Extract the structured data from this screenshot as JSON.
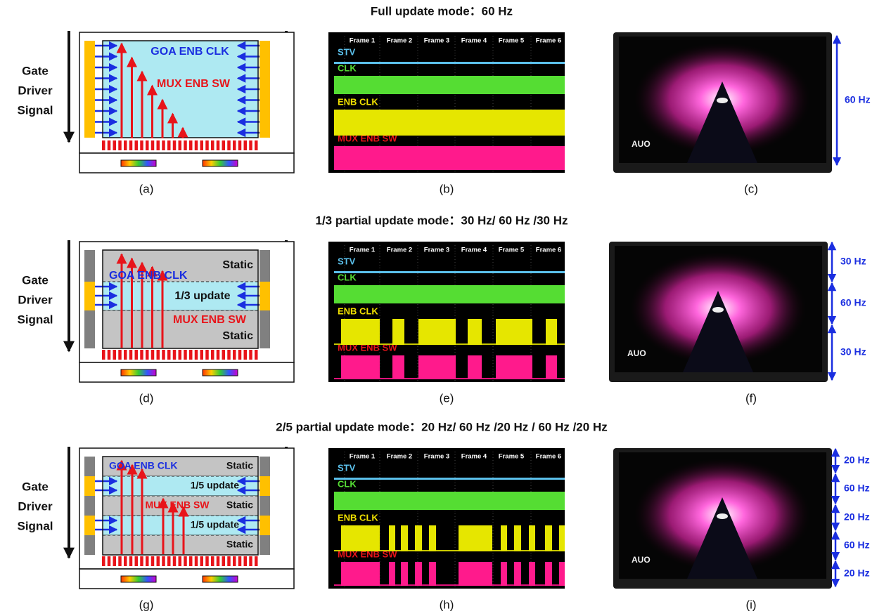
{
  "rows": [
    {
      "title": "Full update mode：60 Hz",
      "side_label": [
        "Gate",
        "Driver",
        "Signal"
      ],
      "diagram_texts": [
        "GOA ENB CLK",
        "MUX ENB SW"
      ],
      "scope": {
        "frames": [
          "Frame 1",
          "Frame 2",
          "Frame 3",
          "Frame 4",
          "Frame 5",
          "Frame 6"
        ],
        "signals": [
          "STV",
          "CLK",
          "ENB CLK",
          "MUX ENB SW"
        ]
      },
      "photo": {
        "logo": "AUO",
        "rates": [
          "60 Hz"
        ]
      },
      "captions": [
        "(a)",
        "(b)",
        "(c)"
      ]
    },
    {
      "title": "1/3 partial update mode：30 Hz/ 60 Hz /30 Hz",
      "side_label": [
        "Gate",
        "Driver",
        "Signal"
      ],
      "diagram_texts": [
        "Static",
        "GOA ENB CLK",
        "1/3 update",
        "MUX ENB SW",
        "Static"
      ],
      "scope": {
        "frames": [
          "Frame 1",
          "Frame 2",
          "Frame 3",
          "Frame 4",
          "Frame 5",
          "Frame 6"
        ],
        "signals": [
          "STV",
          "CLK",
          "ENB CLK",
          "MUX ENB SW"
        ]
      },
      "photo": {
        "logo": "AUO",
        "rates": [
          "30 Hz",
          "60 Hz",
          "30 Hz"
        ]
      },
      "captions": [
        "(d)",
        "(e)",
        "(f)"
      ]
    },
    {
      "title": "2/5 partial update mode：20 Hz/ 60 Hz /20 Hz / 60 Hz /20 Hz",
      "side_label": [
        "Gate",
        "Driver",
        "Signal"
      ],
      "diagram_texts": [
        "GOA ENB CLK",
        "Static",
        "1/5 update",
        "MUX ENB SW",
        "Static",
        "1/5 update",
        "Static"
      ],
      "scope": {
        "frames": [
          "Frame 1",
          "Frame 2",
          "Frame 3",
          "Frame 4",
          "Frame 5",
          "Frame 6"
        ],
        "signals": [
          "STV",
          "CLK",
          "ENB CLK",
          "MUX ENB SW"
        ]
      },
      "photo": {
        "logo": "AUO",
        "rates": [
          "20 Hz",
          "60 Hz",
          "20 Hz",
          "60 Hz",
          "20 Hz"
        ]
      },
      "captions": [
        "(g)",
        "(h)",
        "(i)"
      ]
    }
  ]
}
